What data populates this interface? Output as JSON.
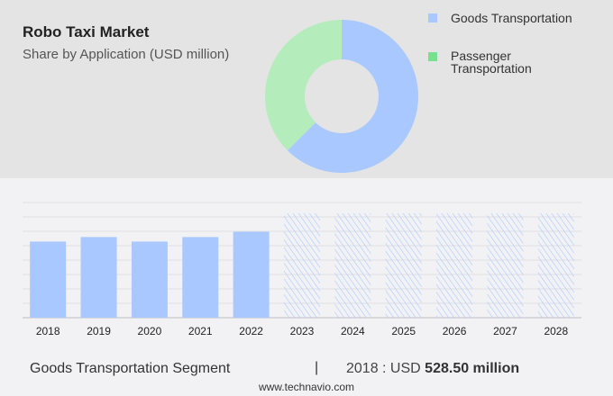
{
  "header": {
    "title": "Robo Taxi Market",
    "subtitle": "Share by Application (USD million)"
  },
  "chart_data": [
    {
      "type": "pie",
      "donut": true,
      "slices": [
        {
          "name": "Goods Transportation",
          "value": 62.5,
          "color": "#a8c8ff"
        },
        {
          "name": "Passenger Transportation",
          "value": 37.5,
          "color": "#b5ecbc"
        }
      ],
      "legend_colors": [
        "#a8c8ff",
        "#78e08e"
      ],
      "legend": "top-right"
    },
    {
      "type": "bar",
      "categories": [
        "2018",
        "2019",
        "2020",
        "2021",
        "2022",
        "2023",
        "2024",
        "2025",
        "2026",
        "2027",
        "2028"
      ],
      "values": [
        528.5,
        560,
        528.5,
        560,
        597,
        null,
        null,
        null,
        null,
        null,
        null
      ],
      "forecast": [
        false,
        false,
        false,
        false,
        false,
        true,
        true,
        true,
        true,
        true,
        true
      ],
      "ylim": [
        0,
        800
      ],
      "grid": true,
      "color": "#a8c8ff"
    }
  ],
  "footer": {
    "segment": "Goods Transportation Segment",
    "separator": "|",
    "year_label": "2018 : USD",
    "value": "528.50 million",
    "site": "www.technavio.com"
  }
}
